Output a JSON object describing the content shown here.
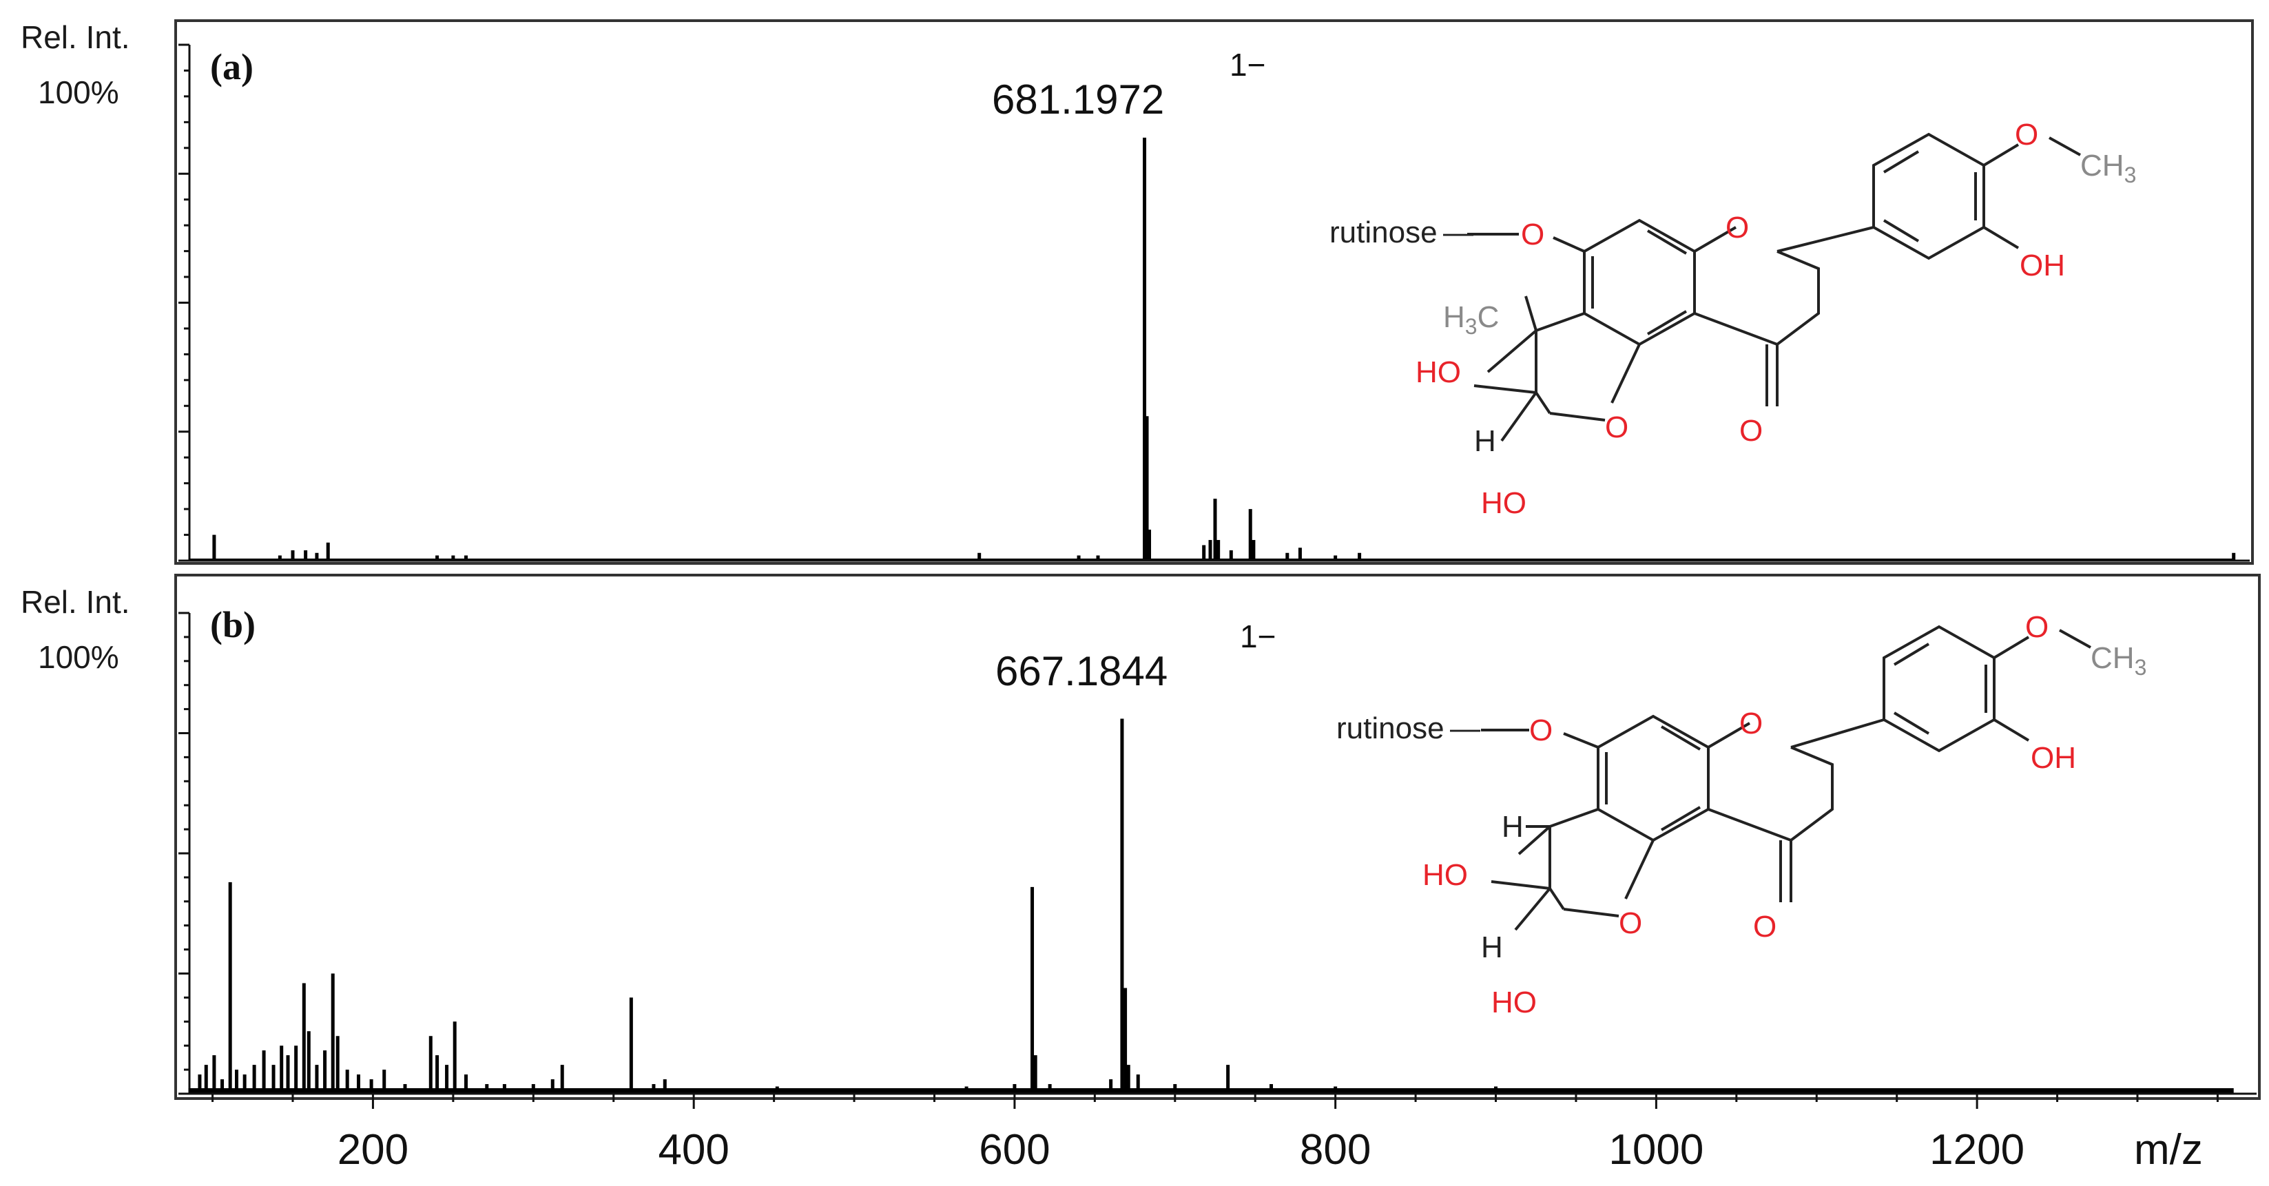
{
  "chart_data": [
    {
      "type": "bar",
      "panel": "(a)",
      "ylabel_line1": "Rel. Int.",
      "ylabel_line2": "100%",
      "xlabel": "m/z",
      "xlim": [
        80,
        1370
      ],
      "ylim": [
        0,
        100
      ],
      "peak_label": "681.1972",
      "charge_label": "1−",
      "peaks": [
        {
          "x": 101,
          "y": 5
        },
        {
          "x": 142,
          "y": 1
        },
        {
          "x": 150,
          "y": 2
        },
        {
          "x": 158,
          "y": 2
        },
        {
          "x": 165,
          "y": 1.5
        },
        {
          "x": 172,
          "y": 3.5
        },
        {
          "x": 240,
          "y": 1
        },
        {
          "x": 250,
          "y": 1
        },
        {
          "x": 258,
          "y": 1
        },
        {
          "x": 578,
          "y": 1.5
        },
        {
          "x": 640,
          "y": 1
        },
        {
          "x": 652,
          "y": 1
        },
        {
          "x": 681,
          "y": 82
        },
        {
          "x": 682.5,
          "y": 28
        },
        {
          "x": 684,
          "y": 6
        },
        {
          "x": 718,
          "y": 3
        },
        {
          "x": 722,
          "y": 4
        },
        {
          "x": 725,
          "y": 12
        },
        {
          "x": 727,
          "y": 4
        },
        {
          "x": 735,
          "y": 2
        },
        {
          "x": 747,
          "y": 10
        },
        {
          "x": 749,
          "y": 4
        },
        {
          "x": 770,
          "y": 1.5
        },
        {
          "x": 778,
          "y": 2.5
        },
        {
          "x": 800,
          "y": 1
        },
        {
          "x": 815,
          "y": 1.5
        },
        {
          "x": 1360,
          "y": 1.5
        }
      ],
      "structure": {
        "substituent": "rutinose",
        "atoms_red": [
          "O",
          "O",
          "O",
          "O",
          "OH",
          "HO",
          "HO"
        ],
        "atoms_black": [
          "H"
        ],
        "methyl_top": "CH",
        "methyl_top_sub": "3",
        "methyl_ring_pre": "H",
        "methyl_ring_sub": "3",
        "methyl_ring_post": "C"
      }
    },
    {
      "type": "bar",
      "panel": "(b)",
      "ylabel_line1": "Rel. Int.",
      "ylabel_line2": "100%",
      "xlabel": "m/z",
      "xlim": [
        80,
        1370
      ],
      "ylim": [
        0,
        100
      ],
      "peak_label": "667.1844",
      "charge_label": "1−",
      "peaks": [
        {
          "x": 92,
          "y": 4
        },
        {
          "x": 96,
          "y": 6
        },
        {
          "x": 101,
          "y": 8
        },
        {
          "x": 106,
          "y": 3
        },
        {
          "x": 111,
          "y": 44
        },
        {
          "x": 115,
          "y": 5
        },
        {
          "x": 120,
          "y": 4
        },
        {
          "x": 126,
          "y": 6
        },
        {
          "x": 132,
          "y": 9
        },
        {
          "x": 138,
          "y": 6
        },
        {
          "x": 143,
          "y": 10
        },
        {
          "x": 147,
          "y": 8
        },
        {
          "x": 152,
          "y": 10
        },
        {
          "x": 157,
          "y": 23
        },
        {
          "x": 160,
          "y": 13
        },
        {
          "x": 165,
          "y": 6
        },
        {
          "x": 170,
          "y": 9
        },
        {
          "x": 175,
          "y": 25
        },
        {
          "x": 178,
          "y": 12
        },
        {
          "x": 184,
          "y": 5
        },
        {
          "x": 191,
          "y": 4
        },
        {
          "x": 199,
          "y": 3
        },
        {
          "x": 207,
          "y": 5
        },
        {
          "x": 220,
          "y": 2
        },
        {
          "x": 236,
          "y": 12
        },
        {
          "x": 240,
          "y": 8
        },
        {
          "x": 246,
          "y": 6
        },
        {
          "x": 251,
          "y": 15
        },
        {
          "x": 258,
          "y": 4
        },
        {
          "x": 271,
          "y": 2
        },
        {
          "x": 282,
          "y": 2
        },
        {
          "x": 300,
          "y": 2
        },
        {
          "x": 312,
          "y": 3
        },
        {
          "x": 318,
          "y": 6
        },
        {
          "x": 361,
          "y": 20
        },
        {
          "x": 375,
          "y": 2
        },
        {
          "x": 382,
          "y": 3
        },
        {
          "x": 452,
          "y": 1.5
        },
        {
          "x": 570,
          "y": 1.5
        },
        {
          "x": 600,
          "y": 2
        },
        {
          "x": 611,
          "y": 43
        },
        {
          "x": 613,
          "y": 8
        },
        {
          "x": 622,
          "y": 2
        },
        {
          "x": 660,
          "y": 3
        },
        {
          "x": 667,
          "y": 78
        },
        {
          "x": 669,
          "y": 22
        },
        {
          "x": 671,
          "y": 6
        },
        {
          "x": 677,
          "y": 4
        },
        {
          "x": 700,
          "y": 2
        },
        {
          "x": 733,
          "y": 6
        },
        {
          "x": 760,
          "y": 2
        },
        {
          "x": 800,
          "y": 1.5
        },
        {
          "x": 900,
          "y": 1.5
        },
        {
          "x": 1000,
          "y": 1
        },
        {
          "x": 1200,
          "y": 1
        }
      ],
      "structure": {
        "substituent": "rutinose",
        "atoms_red": [
          "O",
          "O",
          "O",
          "O",
          "OH",
          "HO",
          "HO"
        ],
        "atoms_black": [
          "H",
          "H"
        ],
        "methyl_top": "CH",
        "methyl_top_sub": "3"
      }
    }
  ],
  "x_ticks": [
    200,
    400,
    600,
    800,
    1000,
    1200
  ],
  "x_axis_label": "m/z"
}
